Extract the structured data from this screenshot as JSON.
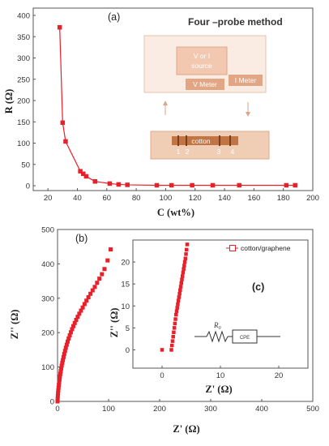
{
  "chart_data": [
    {
      "type": "scatter",
      "panel_label": "(a)",
      "xlabel": "C (wt%)",
      "ylabel": "R (Ω)",
      "xlim": [
        10,
        200
      ],
      "ylim": [
        0,
        400
      ],
      "xticks": [
        "20",
        "40",
        "60",
        "80",
        "100",
        "120",
        "140",
        "160",
        "180",
        "200"
      ],
      "yticks": [
        "0",
        "50",
        "100",
        "150",
        "200",
        "250",
        "300",
        "350",
        "400"
      ],
      "series": [
        {
          "color": "#e8202a",
          "marker": "square",
          "line": true,
          "x": [
            28,
            30,
            32,
            42,
            44,
            46,
            52,
            62,
            68,
            74,
            94,
            104,
            118,
            132,
            150,
            182,
            188
          ],
          "y": [
            372,
            148,
            104,
            34,
            28,
            22,
            10,
            5,
            3,
            2,
            1,
            1,
            1,
            1,
            1,
            1,
            1
          ]
        }
      ],
      "inset": {
        "title": "Four –probe method",
        "source_label": "V or I source",
        "vmeter_label": "V Meter",
        "imeter_label": "I Meter",
        "sample_label": "cotton",
        "probe_numbers": [
          "1",
          "2",
          "3",
          "4"
        ],
        "colors": {
          "light": "#f2d2bf",
          "mid": "#e0a888",
          "dark": "#c07040",
          "line": "#d9a687"
        }
      }
    },
    {
      "type": "scatter",
      "panel_label": "(b)",
      "xlabel": "Z' (Ω)",
      "ylabel": "Z'' (Ω)",
      "xlim": [
        0,
        500
      ],
      "ylim": [
        0,
        500
      ],
      "xticks": [
        "0",
        "100",
        "200",
        "300",
        "400",
        "500"
      ],
      "yticks": [
        "0",
        "100",
        "200",
        "300",
        "400",
        "500"
      ],
      "series": [
        {
          "color": "#e8202a",
          "marker": "square",
          "x": [
            0,
            0.3,
            0.6,
            1,
            1.5,
            2,
            2.6,
            3.2,
            3.9,
            4.6,
            5.4,
            6.3,
            7.2,
            8.2,
            9.3,
            10.5,
            11.8,
            13.2,
            14.7,
            16.3,
            18,
            19.8,
            21.8,
            23.9,
            26.1,
            28.5,
            31,
            33.7,
            36.5,
            39.5,
            42.6,
            45.9,
            49.3,
            52.9,
            56.6,
            60.5,
            64.5,
            68.7,
            73,
            77.5,
            82,
            87,
            92,
            98,
            104
          ],
          "y": [
            0,
            8,
            16,
            24,
            32,
            40,
            48,
            56,
            64,
            72,
            80,
            88,
            96,
            104,
            112,
            120,
            129,
            138,
            147,
            156,
            165,
            174,
            183,
            192,
            201,
            210,
            219,
            228,
            237,
            246,
            255,
            264,
            273,
            283,
            293,
            303,
            313,
            323,
            333,
            345,
            357,
            370,
            385,
            410,
            442
          ]
        }
      ],
      "inset": {
        "xlabel": "Z' (Ω)",
        "ylabel": "Z'' (Ω)",
        "xlim": [
          -5,
          25
        ],
        "ylim": [
          -2.5,
          25
        ],
        "xticks": [
          "0",
          "10",
          "20"
        ],
        "yticks": [
          "0",
          "5",
          "10",
          "15",
          "20"
        ],
        "legend": "cotton/graphene",
        "label_c": "(c)",
        "circuit_r": "R",
        "circuit_r_sub": "0",
        "circuit_cpe": "CPE",
        "series": [
          {
            "color": "#e8202a",
            "marker": "square",
            "x": [
              0,
              1.6,
              1.7,
              1.8,
              1.9,
              2.0,
              2.1,
              2.2,
              2.3,
              2.4,
              2.5,
              2.6,
              2.7,
              2.8,
              2.9,
              3.0,
              3.1,
              3.2,
              3.3,
              3.4,
              3.5,
              3.6,
              3.7,
              3.8,
              3.9,
              4.0,
              4.1,
              4.2,
              4.3
            ],
            "y": [
              0,
              0,
              1,
              2,
              3,
              4,
              5,
              6,
              7,
              8,
              8.8,
              9.6,
              10.4,
              11.2,
              12,
              12.8,
              13.6,
              14.4,
              15.2,
              16,
              16.8,
              17.6,
              18.4,
              19.2,
              20,
              20.8,
              21.8,
              22.8,
              24
            ]
          }
        ]
      }
    }
  ]
}
